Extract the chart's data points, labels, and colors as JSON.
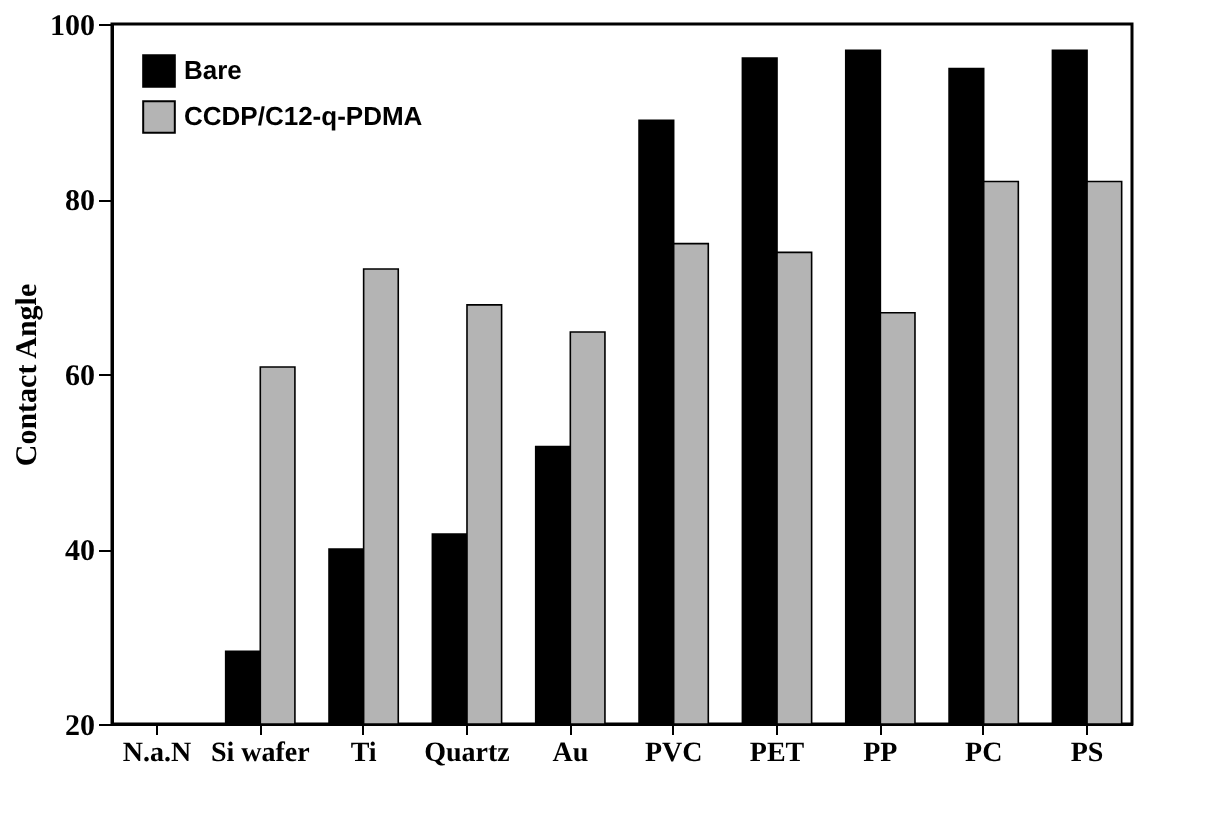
{
  "chart_data": {
    "type": "bar",
    "ylabel": "Contact Angle",
    "categories": [
      "N.a.N",
      "Si wafer",
      "Ti",
      "Quartz",
      "Au",
      "PVC",
      "PET",
      "PP",
      "PC",
      "PS"
    ],
    "series": [
      {
        "name": "Bare",
        "color": "#000000",
        "values": [
          null,
          28.3,
          40,
          41.7,
          51.7,
          89,
          96.1,
          97,
          94.9,
          97
        ]
      },
      {
        "name": "CCDP/C12-q-PDMA",
        "color": "#b4b4b4",
        "values": [
          null,
          60.8,
          72,
          67.9,
          64.8,
          74.9,
          73.9,
          67,
          82,
          82
        ]
      }
    ],
    "ylim": [
      20,
      100
    ],
    "yticks": [
      20,
      40,
      60,
      80,
      100
    ],
    "grid": false,
    "legend": "top left"
  }
}
